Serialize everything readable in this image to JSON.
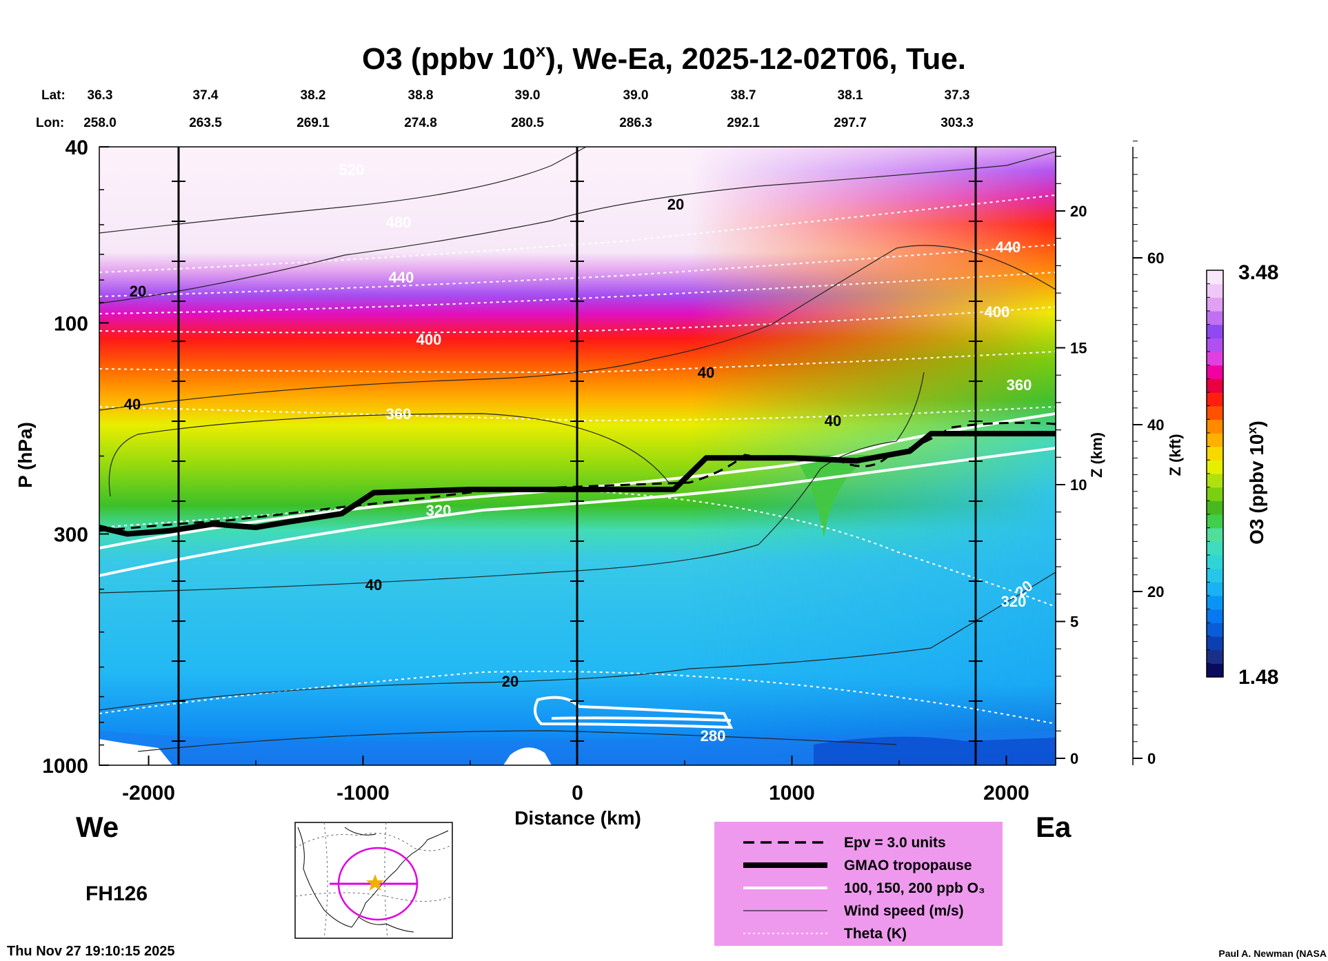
{
  "chart_data": {
    "type": "heatmap",
    "title_prefix": "O3 (ppbv 10",
    "title_sup": "x",
    "title_suffix": "), We-Ea, 2025-12-02T06, Tue.",
    "lat_label": "Lat:",
    "lon_label": "Lon:",
    "lat_values": [
      "36.3",
      "37.4",
      "38.2",
      "38.8",
      "39.0",
      "39.0",
      "38.7",
      "38.1",
      "37.3"
    ],
    "lon_values": [
      "258.0",
      "263.5",
      "269.1",
      "274.8",
      "280.5",
      "286.3",
      "292.1",
      "297.7",
      "303.3"
    ],
    "xlabel": "Distance (km)",
    "ylabel": "P (hPa)",
    "ylabel_right_km": "Z (km)",
    "ylabel_right_kft": "Z (kft)",
    "xlim": [
      -2230,
      2230
    ],
    "ylim": [
      1000,
      40
    ],
    "x_ticks": [
      "-2000",
      "-1000",
      "0",
      "1000",
      "2000"
    ],
    "p_ticks": [
      "40",
      "100",
      "300",
      "1000"
    ],
    "km_ticks": [
      "0",
      "5",
      "10",
      "15",
      "20"
    ],
    "kft_ticks": [
      "0",
      "20",
      "40",
      "60"
    ],
    "colorbar": {
      "label": "O3 (ppbv 10",
      "label_sup": "x",
      "label_end": ")",
      "max": "3.48",
      "min": "1.48",
      "colors": [
        "#0b0b5e",
        "#1a2f88",
        "#0c3fb0",
        "#0a5cd8",
        "#0877f0",
        "#0a95f5",
        "#1ab1f5",
        "#27c6e8",
        "#31d4d6",
        "#3fdcc0",
        "#4fdf9a",
        "#3fcf4a",
        "#48b820",
        "#7ad010",
        "#b0e010",
        "#e4f000",
        "#f8d800",
        "#ffb000",
        "#ff8a00",
        "#ff5000",
        "#ff1e10",
        "#e80040",
        "#f000a0",
        "#e040e0",
        "#b050f0",
        "#9048f0",
        "#c070f0",
        "#e0a0f4",
        "#f0c8f8",
        "#f8e6fa"
      ]
    },
    "side_labels": {
      "west": "We",
      "east": "Ea",
      "forecast_hour": "FH126"
    },
    "legend": [
      {
        "style": "dashed",
        "label": "Epv = 3.0 units"
      },
      {
        "style": "thick",
        "label": "GMAO tropopause"
      },
      {
        "style": "white",
        "label": "100, 150, 200 ppb O₃"
      },
      {
        "style": "thin",
        "label": "Wind speed (m/s)"
      },
      {
        "style": "dotted",
        "label": "Theta (K)"
      }
    ],
    "theta_labels": [
      "520",
      "480",
      "440",
      "400",
      "360",
      "320",
      "440",
      "400",
      "360",
      "320",
      "280"
    ],
    "wind_labels": [
      "20",
      "20",
      "40",
      "40",
      "40",
      "40",
      "20",
      "20"
    ],
    "tropopause": {
      "x_km": [
        -2230,
        -2100,
        -1900,
        -1700,
        -1500,
        -1350,
        -1100,
        -950,
        -500,
        0,
        450,
        600,
        1000,
        1300,
        1550,
        1650,
        2230
      ],
      "p_hpa": [
        290,
        300,
        295,
        285,
        290,
        282,
        270,
        242,
        238,
        238,
        238,
        202,
        202,
        205,
        195,
        178,
        178
      ]
    },
    "colors": {
      "legend_bg": "#ee99ee",
      "map_track": "#e000e0",
      "map_star": "#f0b000"
    },
    "footer": {
      "timestamp": "Thu Nov 27 19:10:15 2025",
      "credit": "Paul A. Newman (NASA"
    }
  }
}
